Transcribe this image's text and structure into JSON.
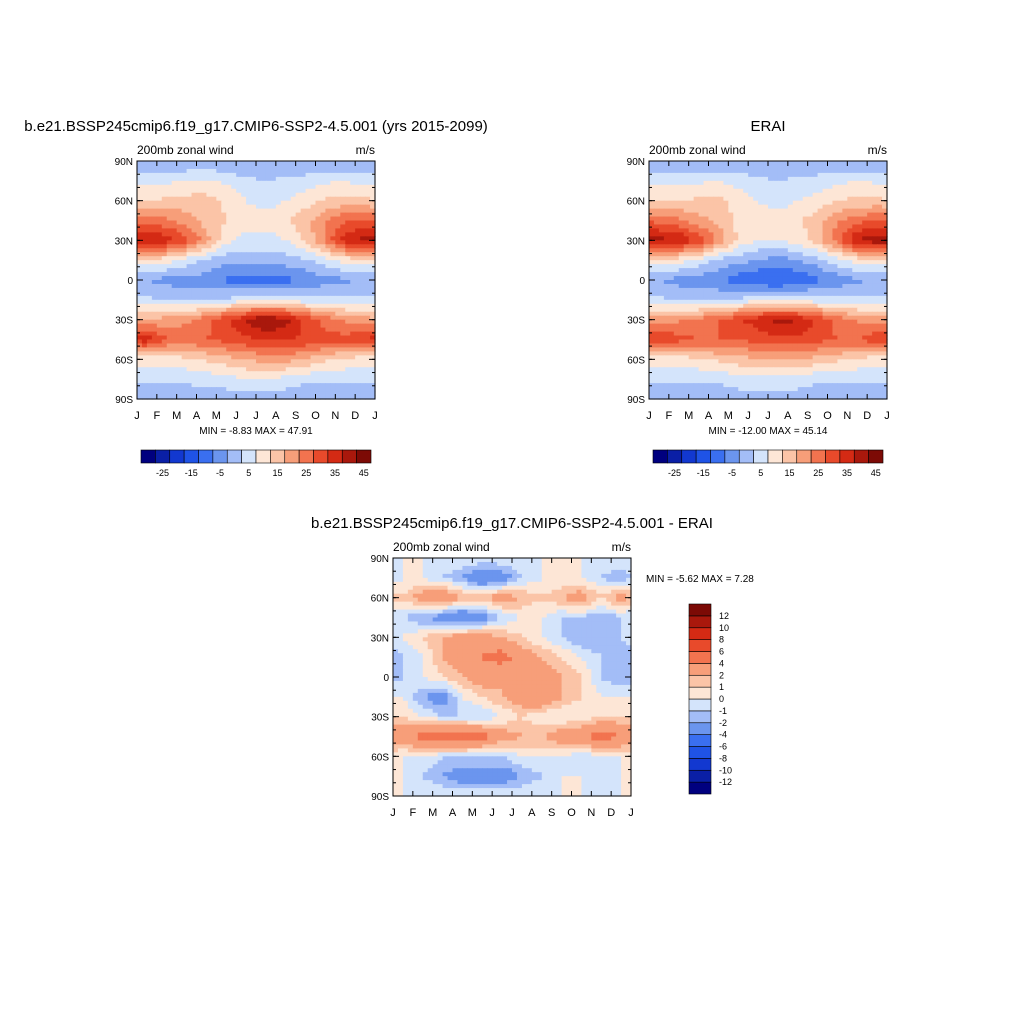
{
  "chart_data": [
    {
      "type": "heatmap",
      "title": "b.e21.BSSP245cmip6.f19_g17.CMIP6-SSP2-4.5.001 (yrs 2015-2099)",
      "left_label": "200mb zonal wind",
      "right_label": "m/s",
      "x_ticks": [
        "J",
        "F",
        "M",
        "A",
        "M",
        "J",
        "J",
        "A",
        "S",
        "O",
        "N",
        "D",
        "J"
      ],
      "y_ticks": [
        "90N",
        "60N",
        "30N",
        "0",
        "30S",
        "60S",
        "90S"
      ],
      "stats": "MIN =  -8.83 MAX =  47.91",
      "colorbar": {
        "colors": [
          "#00007f",
          "#0a1fa6",
          "#1238d0",
          "#1f53e6",
          "#3a6ff0",
          "#6b95ee",
          "#a3bdf7",
          "#d4e4fb",
          "#fde6d6",
          "#fbc4a7",
          "#f79e79",
          "#f2734f",
          "#e84a2b",
          "#d42a14",
          "#a9180c",
          "#7c0a05"
        ],
        "tick_labels": [
          "-25",
          "-15",
          "-5",
          "5",
          "15",
          "25",
          "35",
          "45"
        ]
      },
      "lat_levels": [
        90,
        75,
        60,
        45,
        30,
        15,
        0,
        -15,
        -30,
        -45,
        -60,
        -75,
        -90
      ],
      "months": [
        1,
        2,
        3,
        4,
        5,
        6,
        7,
        8,
        9,
        10,
        11,
        12
      ],
      "values": [
        [
          0,
          0,
          0,
          0,
          0,
          0,
          0,
          0,
          0,
          0,
          0,
          0
        ],
        [
          8,
          9,
          10,
          11,
          9,
          6,
          5,
          6,
          7,
          9,
          10,
          8
        ],
        [
          15,
          16,
          17,
          17,
          14,
          10,
          8,
          10,
          13,
          16,
          17,
          16
        ],
        [
          28,
          26,
          22,
          18,
          15,
          12,
          12,
          14,
          18,
          24,
          30,
          30
        ],
        [
          40,
          38,
          32,
          22,
          12,
          8,
          8,
          10,
          16,
          26,
          38,
          42
        ],
        [
          14,
          12,
          8,
          4,
          2,
          2,
          2,
          3,
          4,
          8,
          12,
          14
        ],
        [
          0,
          -2,
          -2,
          -2,
          -6,
          -8,
          -8,
          -7,
          -4,
          -2,
          -1,
          0
        ],
        [
          6,
          5,
          4,
          4,
          6,
          8,
          8,
          8,
          7,
          6,
          6,
          6
        ],
        [
          20,
          22,
          24,
          28,
          34,
          40,
          46,
          42,
          34,
          28,
          24,
          22
        ],
        [
          38,
          30,
          28,
          30,
          32,
          34,
          36,
          36,
          34,
          32,
          32,
          36
        ],
        [
          12,
          12,
          14,
          16,
          18,
          20,
          22,
          22,
          20,
          16,
          14,
          12
        ],
        [
          6,
          6,
          6,
          7,
          8,
          10,
          10,
          8,
          6,
          6,
          6,
          6
        ],
        [
          2,
          2,
          2,
          2,
          2,
          2,
          2,
          2,
          2,
          2,
          2,
          2
        ]
      ]
    },
    {
      "type": "heatmap",
      "title": "ERAI",
      "left_label": "200mb zonal wind",
      "right_label": "m/s",
      "x_ticks": [
        "J",
        "F",
        "M",
        "A",
        "M",
        "J",
        "J",
        "A",
        "S",
        "O",
        "N",
        "D",
        "J"
      ],
      "y_ticks": [
        "90N",
        "60N",
        "30N",
        "0",
        "30S",
        "60S",
        "90S"
      ],
      "stats": "MIN = -12.00 MAX =  45.14",
      "colorbar": {
        "colors": [
          "#00007f",
          "#0a1fa6",
          "#1238d0",
          "#1f53e6",
          "#3a6ff0",
          "#6b95ee",
          "#a3bdf7",
          "#d4e4fb",
          "#fde6d6",
          "#fbc4a7",
          "#f79e79",
          "#f2734f",
          "#e84a2b",
          "#d42a14",
          "#a9180c",
          "#7c0a05"
        ],
        "tick_labels": [
          "-25",
          "-15",
          "-5",
          "5",
          "15",
          "25",
          "35",
          "45"
        ]
      },
      "lat_levels": [
        90,
        75,
        60,
        45,
        30,
        15,
        0,
        -15,
        -30,
        -45,
        -60,
        -75,
        -90
      ],
      "months": [
        1,
        2,
        3,
        4,
        5,
        6,
        7,
        8,
        9,
        10,
        11,
        12
      ],
      "values": [
        [
          0,
          0,
          0,
          0,
          0,
          0,
          0,
          0,
          0,
          0,
          0,
          0
        ],
        [
          8,
          8,
          9,
          10,
          8,
          6,
          5,
          6,
          7,
          9,
          10,
          9
        ],
        [
          15,
          15,
          16,
          16,
          13,
          10,
          8,
          10,
          12,
          15,
          16,
          16
        ],
        [
          28,
          26,
          22,
          18,
          14,
          12,
          12,
          14,
          18,
          24,
          28,
          30
        ],
        [
          42,
          40,
          34,
          24,
          14,
          10,
          10,
          12,
          18,
          28,
          40,
          44
        ],
        [
          14,
          12,
          8,
          4,
          2,
          0,
          -2,
          0,
          3,
          8,
          12,
          14
        ],
        [
          0,
          -2,
          -3,
          -4,
          -8,
          -10,
          -11,
          -9,
          -6,
          -3,
          -1,
          0
        ],
        [
          6,
          5,
          4,
          4,
          6,
          8,
          8,
          8,
          7,
          6,
          6,
          6
        ],
        [
          22,
          24,
          26,
          30,
          34,
          38,
          42,
          40,
          34,
          28,
          24,
          22
        ],
        [
          36,
          32,
          30,
          30,
          30,
          32,
          34,
          34,
          32,
          30,
          30,
          34
        ],
        [
          12,
          12,
          14,
          16,
          18,
          20,
          20,
          20,
          18,
          16,
          14,
          12
        ],
        [
          6,
          6,
          6,
          6,
          8,
          8,
          8,
          8,
          6,
          6,
          6,
          6
        ],
        [
          2,
          2,
          2,
          2,
          2,
          2,
          2,
          2,
          2,
          2,
          2,
          2
        ]
      ]
    },
    {
      "type": "heatmap",
      "title": "b.e21.BSSP245cmip6.f19_g17.CMIP6-SSP2-4.5.001 - ERAI",
      "left_label": "200mb zonal wind",
      "right_label": "m/s",
      "x_ticks": [
        "J",
        "F",
        "M",
        "A",
        "M",
        "J",
        "J",
        "A",
        "S",
        "O",
        "N",
        "D",
        "J"
      ],
      "y_ticks": [
        "90N",
        "60N",
        "30N",
        "0",
        "30S",
        "60S",
        "90S"
      ],
      "stats": "MIN =  -5.62 MAX =   7.28",
      "colorbar": {
        "colors": [
          "#00007f",
          "#0a1fa6",
          "#1238d0",
          "#1f53e6",
          "#3a6ff0",
          "#6b95ee",
          "#a3bdf7",
          "#d4e4fb",
          "#fde6d6",
          "#fbc4a7",
          "#f79e79",
          "#f2734f",
          "#e84a2b",
          "#d42a14",
          "#a9180c",
          "#7c0a05"
        ],
        "tick_labels": [
          "-12",
          "-10",
          "-8",
          "-6",
          "-4",
          "-2",
          "-1",
          "0",
          "1",
          "2",
          "4",
          "6",
          "8",
          "10",
          "12"
        ]
      },
      "lat_levels": [
        90,
        75,
        60,
        45,
        30,
        15,
        0,
        -15,
        -30,
        -45,
        -60,
        -75,
        -90
      ],
      "months": [
        1,
        2,
        3,
        4,
        5,
        6,
        7,
        8,
        9,
        10,
        11,
        12
      ],
      "values": [
        [
          0,
          0,
          0,
          0,
          0,
          0,
          0,
          0,
          0,
          0,
          0,
          0
        ],
        [
          0,
          0,
          -1,
          -2,
          -4,
          -3,
          -1,
          0,
          0,
          0,
          -1,
          -2
        ],
        [
          1,
          3,
          4,
          2,
          2,
          3,
          2,
          1,
          2,
          3,
          1,
          3
        ],
        [
          -1,
          -2,
          -3,
          -4,
          -3,
          -1,
          0,
          0,
          -1,
          -1,
          -2,
          -1
        ],
        [
          0,
          1,
          2,
          3,
          3,
          2,
          1,
          0,
          -1,
          -2,
          -2,
          -1
        ],
        [
          -1,
          0,
          2,
          3,
          4,
          5,
          3,
          2,
          1,
          0,
          -1,
          -2
        ],
        [
          -1,
          0,
          1,
          2,
          3,
          2,
          2,
          3,
          2,
          1,
          -1,
          -2
        ],
        [
          0,
          -2,
          -3,
          0,
          1,
          2,
          3,
          4,
          2,
          1,
          0,
          0
        ],
        [
          1,
          0,
          -1,
          -1,
          -1,
          0,
          1,
          0,
          0,
          0,
          1,
          1
        ],
        [
          3,
          5,
          6,
          6,
          5,
          3,
          2,
          2,
          3,
          4,
          5,
          4
        ],
        [
          0,
          0,
          -1,
          -1,
          -1,
          -1,
          0,
          0,
          0,
          -1,
          0,
          0
        ],
        [
          0,
          -1,
          -2,
          -3,
          -3,
          -3,
          -2,
          -1,
          0,
          0,
          -1,
          0
        ],
        [
          0,
          0,
          0,
          0,
          0,
          0,
          0,
          0,
          0,
          0,
          0,
          0
        ]
      ]
    }
  ]
}
